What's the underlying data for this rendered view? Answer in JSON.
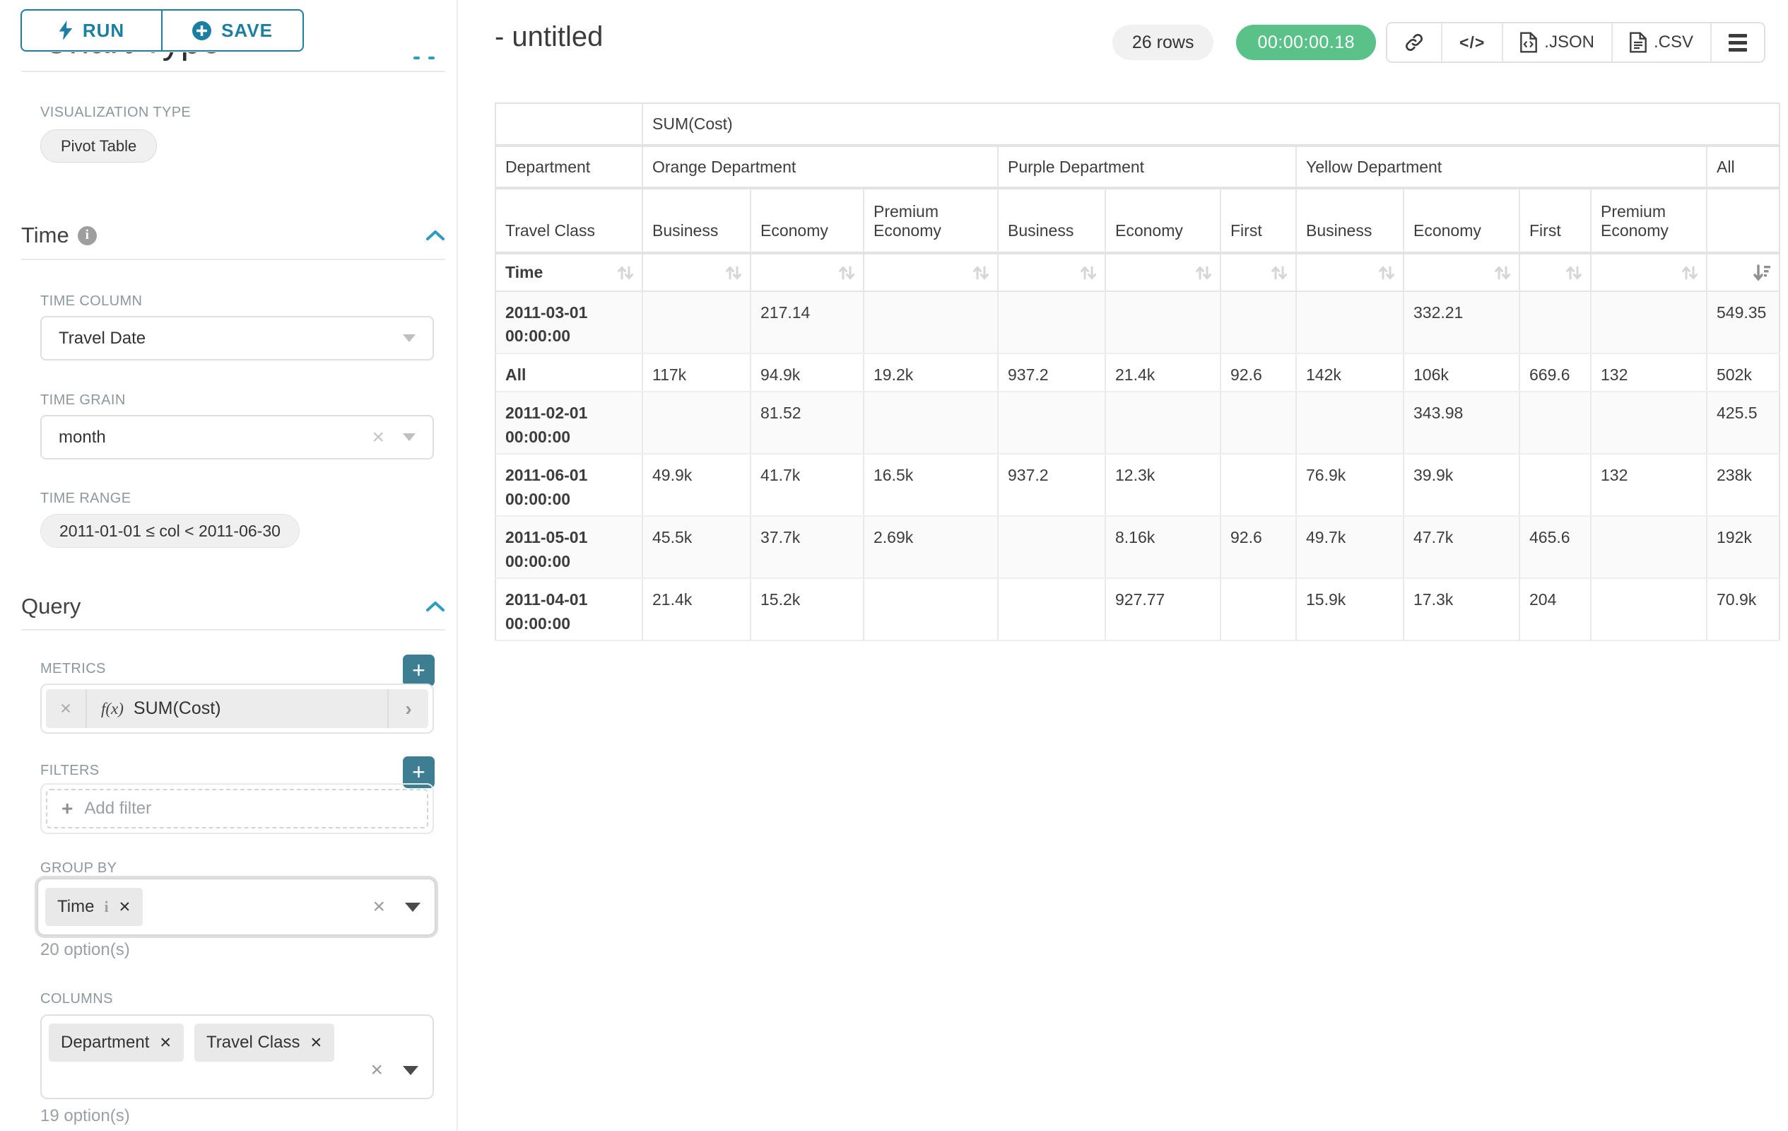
{
  "toolbar": {
    "run": "RUN",
    "save": "SAVE"
  },
  "panel": {
    "chart_type_heading": "Chart Type",
    "viz_label": "VISUALIZATION TYPE",
    "viz_value": "Pivot Table",
    "time": {
      "title": "Time",
      "time_column_label": "TIME COLUMN",
      "time_column_value": "Travel Date",
      "time_grain_label": "TIME GRAIN",
      "time_grain_value": "month",
      "time_range_label": "TIME RANGE",
      "time_range_value": "2011-01-01 ≤ col < 2011-06-30"
    },
    "query": {
      "title": "Query",
      "metrics_label": "METRICS",
      "metric_prefix": "f(x)",
      "metric_value": "SUM(Cost)",
      "filters_label": "FILTERS",
      "add_filter_placeholder": "Add filter",
      "group_by_label": "GROUP BY",
      "group_by_tags": [
        "Time"
      ],
      "group_by_options_note": "20 option(s)",
      "columns_label": "COLUMNS",
      "columns_tags": [
        "Department",
        "Travel Class"
      ],
      "columns_options_note": "19 option(s)"
    }
  },
  "header": {
    "title": "- untitled",
    "row_count": "26 rows",
    "duration": "00:00:00.18",
    "export_json": ".JSON",
    "export_csv": ".CSV",
    "code_glyph": "</>"
  },
  "colors": {
    "accent": "#1c7ea0",
    "success": "#5ac189",
    "plus_button": "#3d7e93"
  },
  "table": {
    "metric_header": "SUM(Cost)",
    "row_dim_label": "Department",
    "col_dim_label": "Travel Class",
    "time_label": "Time",
    "groups": [
      {
        "label": "Orange Department",
        "columns": [
          "Business",
          "Economy",
          "Premium Economy"
        ]
      },
      {
        "label": "Purple Department",
        "columns": [
          "Business",
          "Economy",
          "First"
        ]
      },
      {
        "label": "Yellow Department",
        "columns": [
          "Business",
          "Economy",
          "First",
          "Premium Economy"
        ]
      },
      {
        "label": "All",
        "columns": [
          ""
        ]
      }
    ],
    "rows": [
      {
        "label": "2011-03-01 00:00:00",
        "values": [
          "",
          "217.14",
          "",
          "",
          "",
          "",
          "",
          "332.21",
          "",
          "",
          "549.35"
        ]
      },
      {
        "label": "All",
        "values": [
          "117k",
          "94.9k",
          "19.2k",
          "937.2",
          "21.4k",
          "92.6",
          "142k",
          "106k",
          "669.6",
          "132",
          "502k"
        ]
      },
      {
        "label": "2011-02-01 00:00:00",
        "values": [
          "",
          "81.52",
          "",
          "",
          "",
          "",
          "",
          "343.98",
          "",
          "",
          "425.5"
        ]
      },
      {
        "label": "2011-06-01 00:00:00",
        "values": [
          "49.9k",
          "41.7k",
          "16.5k",
          "937.2",
          "12.3k",
          "",
          "76.9k",
          "39.9k",
          "",
          "132",
          "238k"
        ]
      },
      {
        "label": "2011-05-01 00:00:00",
        "values": [
          "45.5k",
          "37.7k",
          "2.69k",
          "",
          "8.16k",
          "92.6",
          "49.7k",
          "47.7k",
          "465.6",
          "",
          "192k"
        ]
      },
      {
        "label": "2011-04-01 00:00:00",
        "values": [
          "21.4k",
          "15.2k",
          "",
          "",
          "927.77",
          "",
          "15.9k",
          "17.3k",
          "204",
          "",
          "70.9k"
        ]
      }
    ],
    "sorted_last_column": "descending"
  }
}
